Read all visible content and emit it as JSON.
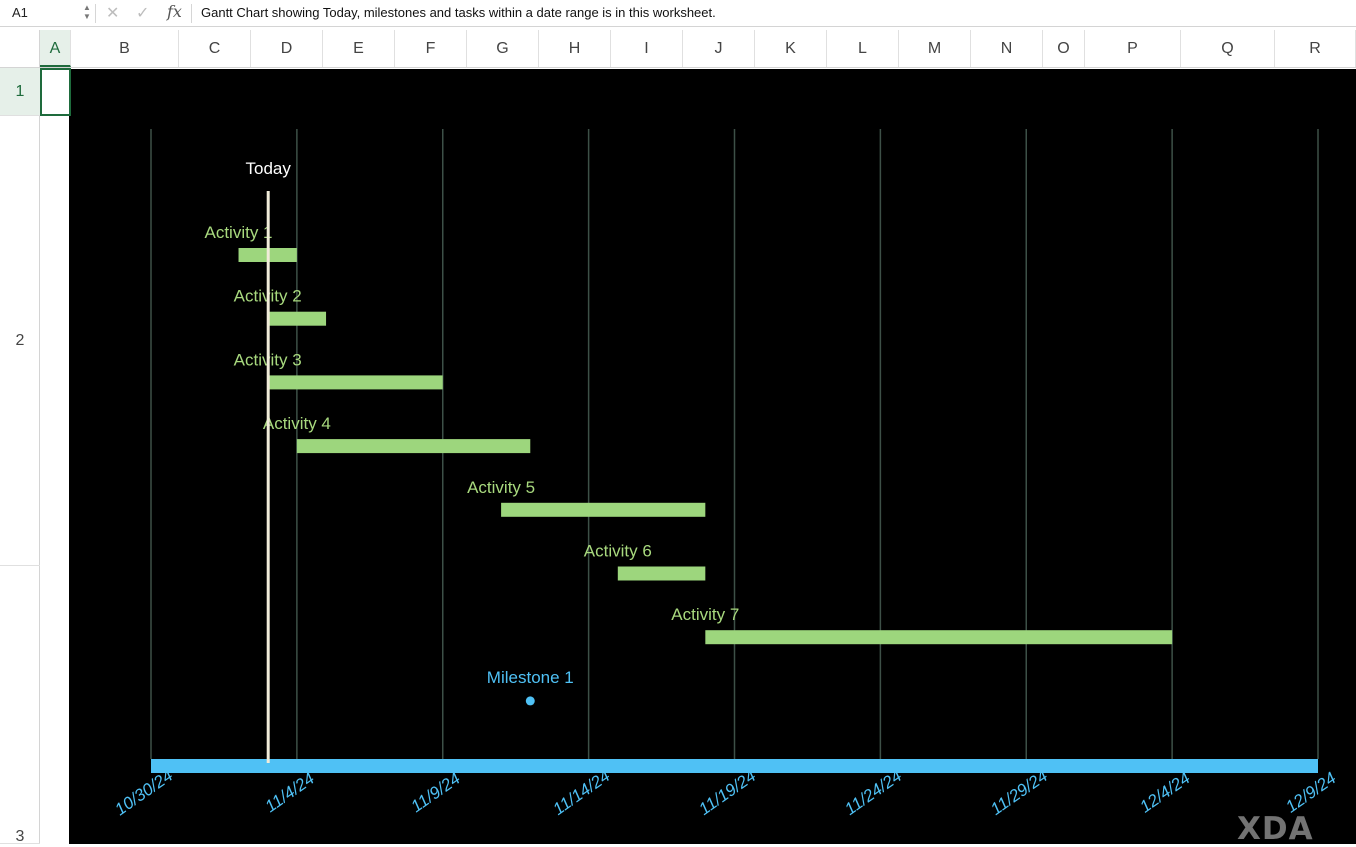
{
  "formula_bar": {
    "name_box": "A1",
    "fx_label": "fx",
    "formula": "Gantt Chart showing Today, milestones and tasks within a date range is in this worksheet."
  },
  "columns": [
    "A",
    "B",
    "C",
    "D",
    "E",
    "F",
    "G",
    "H",
    "I",
    "J",
    "K",
    "L",
    "M",
    "N",
    "O",
    "P",
    "Q",
    "R"
  ],
  "active_column": "A",
  "rows": [
    "1",
    "2",
    "3"
  ],
  "active_row": "1",
  "colors": {
    "chart_background": "#000000",
    "task_bar": "#9dd67d",
    "task_label": "#a8d97e",
    "milestone": "#4fc1f5",
    "today_line": "#f1ecd9",
    "gridline": "#3d5047",
    "axis_bar": "#4fc1f5",
    "excel_green": "#1e6b3c"
  },
  "watermark": "XDA",
  "chart_data": {
    "type": "gantt",
    "x_axis_ticks": [
      "10/30/24",
      "11/4/24",
      "11/9/24",
      "11/14/24",
      "11/19/24",
      "11/24/24",
      "11/29/24",
      "12/4/24",
      "12/9/24"
    ],
    "xlim": [
      "2024-10-30",
      "2024-12-09"
    ],
    "today": {
      "label": "Today",
      "date": "2024-11-03"
    },
    "tasks": [
      {
        "label": "Activity 1",
        "start": "2024-11-02",
        "end": "2024-11-04"
      },
      {
        "label": "Activity 2",
        "start": "2024-11-03",
        "end": "2024-11-05"
      },
      {
        "label": "Activity 3",
        "start": "2024-11-03",
        "end": "2024-11-09"
      },
      {
        "label": "Activity 4",
        "start": "2024-11-04",
        "end": "2024-11-12"
      },
      {
        "label": "Activity 5",
        "start": "2024-11-11",
        "end": "2024-11-18"
      },
      {
        "label": "Activity 6",
        "start": "2024-11-15",
        "end": "2024-11-18"
      },
      {
        "label": "Activity 7",
        "start": "2024-11-18",
        "end": "2024-12-04"
      }
    ],
    "milestones": [
      {
        "label": "Milestone 1",
        "date": "2024-11-12"
      }
    ],
    "grid": true
  }
}
